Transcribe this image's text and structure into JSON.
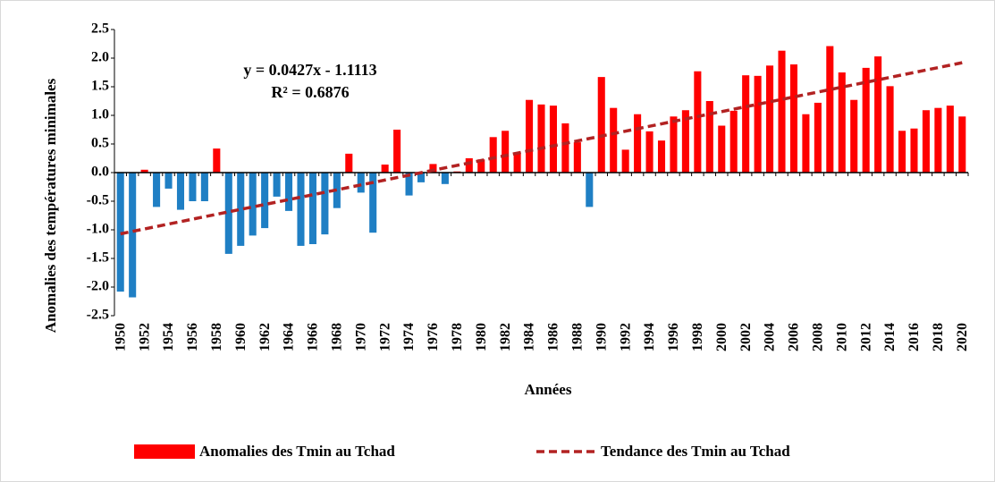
{
  "chart_data": {
    "type": "bar",
    "y_axis_label": "Anomalies des températures minimales",
    "x_axis_label": "Années",
    "annotations": [
      "y = 0.0427x - 1.1113",
      "R² = 0.6876"
    ],
    "categories": [
      "1950",
      null,
      "1952",
      null,
      "1954",
      null,
      "1956",
      null,
      "1958",
      null,
      "1960",
      null,
      "1962",
      null,
      "1964",
      null,
      "1966",
      null,
      "1968",
      null,
      "1970",
      null,
      "1972",
      null,
      "1974",
      null,
      "1976",
      null,
      "1978",
      null,
      "1980",
      null,
      "1982",
      null,
      "1984",
      null,
      "1986",
      null,
      "1988",
      null,
      "1990",
      null,
      "1992",
      null,
      "1994",
      null,
      "1996",
      null,
      "1998",
      null,
      "2000",
      null,
      "2002",
      null,
      "2004",
      null,
      "2006",
      null,
      "2008",
      null,
      "2010",
      null,
      "2012",
      null,
      "2014",
      null,
      "2016",
      null,
      "2018",
      null,
      "2020"
    ],
    "series": [
      {
        "name": "Anomalies des Tmin au Tchad",
        "color": "#ff0000",
        "color_negative": "#1f7fc4",
        "values": [
          -2.08,
          -2.18,
          0.05,
          -0.6,
          -0.28,
          -0.65,
          -0.5,
          -0.5,
          0.42,
          -1.42,
          -1.28,
          -1.1,
          -0.97,
          -0.42,
          -0.67,
          -1.28,
          -1.25,
          -1.08,
          -0.62,
          0.33,
          -0.35,
          -1.05,
          0.14,
          0.75,
          -0.4,
          -0.17,
          0.15,
          -0.2,
          0.02,
          0.25,
          0.23,
          0.62,
          0.73,
          0.35,
          1.27,
          1.19,
          1.17,
          0.86,
          0.53,
          -0.6,
          1.67,
          1.13,
          0.4,
          1.02,
          0.72,
          0.56,
          0.98,
          1.09,
          1.77,
          1.25,
          0.82,
          1.08,
          1.7,
          1.69,
          1.87,
          2.13,
          1.89,
          1.02,
          1.22,
          2.21,
          1.75,
          1.27,
          1.83,
          2.03,
          1.51,
          0.73,
          0.77,
          1.09,
          1.13,
          1.17,
          0.98
        ]
      }
    ],
    "trend": {
      "name": "Tendance des Tmin au Tchad",
      "color": "#b22222",
      "values": [
        -1.07,
        1.92
      ]
    },
    "ylim": [
      -2.5,
      2.5
    ],
    "yticks": [
      2.5,
      {
        "value": 2,
        "label": "2.0"
      },
      1.5,
      {
        "value": 1,
        "label": "1.0"
      },
      0.5,
      {
        "value": 0,
        "label": "0.0"
      },
      -0.5,
      {
        "value": -1,
        "label": "-1.0"
      },
      -1.5,
      {
        "value": -2,
        "label": "-2.0"
      },
      -2.5
    ]
  }
}
